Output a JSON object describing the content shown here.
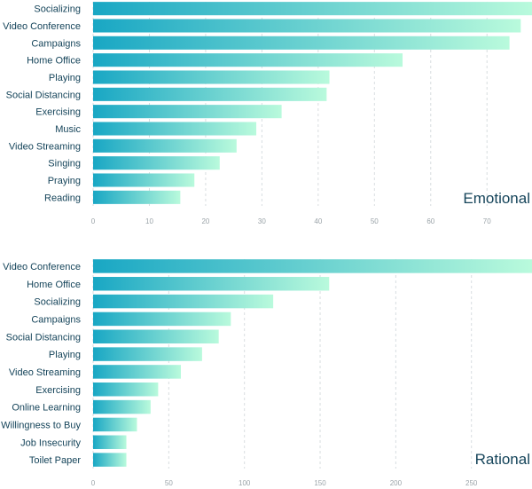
{
  "chart_data": [
    {
      "type": "bar",
      "orientation": "horizontal",
      "title": "Emotional",
      "xlabel": "",
      "ylabel": "",
      "xlim": [
        0,
        78
      ],
      "xticks": [
        0,
        10,
        20,
        30,
        40,
        50,
        60,
        70
      ],
      "grid": true,
      "legend": "none",
      "categories": [
        "Socializing",
        "Video Conference",
        "Campaigns",
        "Home Office",
        "Playing",
        "Social Distancing",
        "Exercising",
        "Music",
        "Video Streaming",
        "Singing",
        "Praying",
        "Reading"
      ],
      "values": [
        78,
        76,
        74,
        55,
        42,
        41.5,
        33.5,
        29,
        25.5,
        22.5,
        18,
        15.5
      ],
      "colors": {
        "start": "#19a7c4",
        "end": "#b9fadc",
        "text": "#15445a",
        "tick": "#9aa3a8"
      }
    },
    {
      "type": "bar",
      "orientation": "horizontal",
      "title": "Rational",
      "xlabel": "",
      "ylabel": "",
      "xlim": [
        0,
        290
      ],
      "xticks": [
        0,
        50,
        100,
        150,
        200,
        250
      ],
      "grid": true,
      "legend": "none",
      "categories": [
        "Video Conference",
        "Home Office",
        "Socializing",
        "Campaigns",
        "Social Distancing",
        "Playing",
        "Video Streaming",
        "Exercising",
        "Online Learning",
        "Willingness to Buy",
        "Job Insecurity",
        "Toilet Paper"
      ],
      "values": [
        290,
        156,
        119,
        91,
        83,
        72,
        58,
        43,
        38,
        29,
        22,
        22
      ],
      "colors": {
        "start": "#19a7c4",
        "end": "#b9fadc",
        "text": "#15445a",
        "tick": "#9aa3a8"
      }
    }
  ]
}
